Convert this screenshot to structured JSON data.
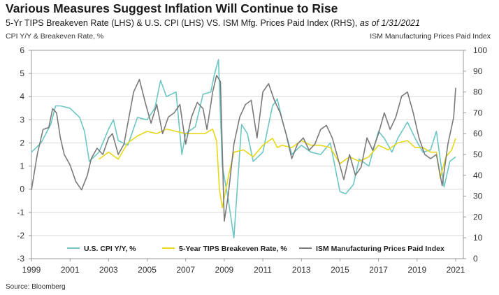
{
  "header": {
    "title": "Various Measures Suggest Inflation Will Continue to Rise",
    "subtitle_main": "5-Yr TIPS Breakeven Rate (LHS) & U.S. CPI (LHS) VS. ISM Mfg. Prices Paid Index (RHS),",
    "subtitle_asof": "as of 1/31/2021",
    "left_axis_label": "CPI Y/Y & Breakeven Rate, %",
    "right_axis_label": "ISM Manufacturing Prices Paid Index"
  },
  "footer": {
    "source": "Source: Bloomberg"
  },
  "chart_data": {
    "type": "line",
    "title": "Various Measures Suggest Inflation Will Continue to Rise",
    "x_tick_labels": [
      "1999",
      "2001",
      "2003",
      "2005",
      "2007",
      "2009",
      "2011",
      "2013",
      "2015",
      "2017",
      "2019",
      "2021"
    ],
    "x_range": [
      1999.0,
      2021.4
    ],
    "left_axis": {
      "ylim": [
        -3,
        6
      ],
      "ticks": [
        "-3",
        "-2",
        "-1",
        "0",
        "1",
        "2",
        "3",
        "4",
        "5",
        "6"
      ]
    },
    "right_axis": {
      "ylim": [
        0,
        100
      ],
      "ticks": [
        "0",
        "10",
        "20",
        "30",
        "40",
        "50",
        "60",
        "70",
        "80",
        "90",
        "100"
      ]
    },
    "grid": "horizontal",
    "legend_position": "bottom",
    "colors": {
      "cpi": "#6cc6c4",
      "tips": "#e8d81a",
      "ism": "#7a7a7a",
      "grid": "#d9d9d9"
    },
    "series": [
      {
        "name": "U.S. CPI Y/Y, %",
        "axis": "left",
        "x": [
          1999.0,
          1999.5,
          2000.0,
          2000.25,
          2000.5,
          2001.0,
          2001.5,
          2001.75,
          2002.0,
          2002.5,
          2003.0,
          2003.25,
          2003.5,
          2004.0,
          2004.5,
          2005.0,
          2005.4,
          2005.7,
          2006.0,
          2006.5,
          2006.8,
          2007.0,
          2007.5,
          2007.9,
          2008.3,
          2008.5,
          2008.7,
          2008.9,
          2009.2,
          2009.5,
          2009.9,
          2010.2,
          2010.5,
          2011.0,
          2011.5,
          2011.75,
          2012.0,
          2012.5,
          2013.0,
          2013.5,
          2014.0,
          2014.5,
          2015.0,
          2015.3,
          2015.7,
          2016.0,
          2016.5,
          2017.0,
          2017.3,
          2017.7,
          2018.0,
          2018.5,
          2018.9,
          2019.3,
          2019.7,
          2020.0,
          2020.4,
          2020.7,
          2021.0
        ],
        "y": [
          1.6,
          2.0,
          2.8,
          3.6,
          3.6,
          3.5,
          3.1,
          2.5,
          1.2,
          1.6,
          2.6,
          3.0,
          2.1,
          1.9,
          3.1,
          3.0,
          3.5,
          4.7,
          4.0,
          4.2,
          1.5,
          2.4,
          2.7,
          4.1,
          4.2,
          5.0,
          5.6,
          1.0,
          -0.4,
          -2.1,
          2.8,
          2.4,
          1.2,
          1.6,
          3.6,
          3.9,
          3.0,
          1.5,
          1.9,
          1.6,
          1.5,
          2.0,
          -0.1,
          -0.2,
          0.2,
          1.3,
          1.0,
          2.5,
          2.2,
          1.6,
          2.2,
          2.9,
          2.2,
          1.6,
          1.7,
          2.5,
          0.1,
          1.2,
          1.4
        ]
      },
      {
        "name": "5-Year TIPS Breakeven Rate, %",
        "axis": "left",
        "x": [
          2002.5,
          2003.0,
          2003.5,
          2004.0,
          2004.5,
          2005.0,
          2005.5,
          2006.0,
          2006.5,
          2007.0,
          2007.5,
          2008.0,
          2008.4,
          2008.6,
          2008.75,
          2008.9,
          2009.2,
          2009.5,
          2010.0,
          2010.5,
          2011.0,
          2011.5,
          2011.75,
          2012.0,
          2012.5,
          2013.0,
          2013.5,
          2014.0,
          2014.5,
          2015.0,
          2015.5,
          2016.0,
          2016.5,
          2017.0,
          2017.5,
          2018.0,
          2018.5,
          2018.9,
          2019.3,
          2019.7,
          2020.0,
          2020.2,
          2020.5,
          2020.8,
          2021.0
        ],
        "y": [
          1.3,
          1.6,
          1.3,
          2.0,
          2.3,
          2.5,
          2.4,
          2.6,
          2.5,
          2.4,
          2.4,
          2.4,
          2.6,
          2.1,
          0.0,
          -0.8,
          0.5,
          1.6,
          1.7,
          1.4,
          1.9,
          2.2,
          1.8,
          1.9,
          1.8,
          2.1,
          1.9,
          1.9,
          1.8,
          1.1,
          1.4,
          1.2,
          1.4,
          1.9,
          1.7,
          2.0,
          2.1,
          1.8,
          1.8,
          1.6,
          1.6,
          0.5,
          1.4,
          1.7,
          2.2
        ]
      },
      {
        "name": "ISM Manufacturing Prices Paid Index",
        "axis": "right",
        "x": [
          1999.0,
          1999.3,
          1999.6,
          1999.9,
          2000.1,
          2000.3,
          2000.5,
          2000.7,
          2001.0,
          2001.3,
          2001.6,
          2001.9,
          2002.1,
          2002.4,
          2002.7,
          2003.0,
          2003.2,
          2003.5,
          2003.8,
          2004.0,
          2004.3,
          2004.6,
          2004.9,
          2005.2,
          2005.5,
          2005.8,
          2006.1,
          2006.4,
          2006.7,
          2007.0,
          2007.3,
          2007.6,
          2007.9,
          2008.1,
          2008.4,
          2008.6,
          2008.8,
          2009.0,
          2009.2,
          2009.5,
          2009.8,
          2010.1,
          2010.4,
          2010.7,
          2011.0,
          2011.3,
          2011.6,
          2011.9,
          2012.2,
          2012.5,
          2012.8,
          2013.1,
          2013.4,
          2013.7,
          2014.0,
          2014.3,
          2014.6,
          2014.9,
          2015.2,
          2015.5,
          2015.8,
          2016.1,
          2016.4,
          2016.7,
          2017.0,
          2017.3,
          2017.6,
          2017.9,
          2018.2,
          2018.5,
          2018.8,
          2019.1,
          2019.4,
          2019.7,
          2020.0,
          2020.3,
          2020.6,
          2020.9,
          2021.0
        ],
        "y": [
          33,
          50,
          62,
          63,
          72,
          70,
          58,
          50,
          45,
          37,
          33,
          40,
          48,
          53,
          50,
          58,
          60,
          50,
          55,
          65,
          80,
          86,
          75,
          65,
          74,
          60,
          68,
          70,
          74,
          55,
          68,
          75,
          72,
          62,
          80,
          88,
          85,
          18,
          30,
          55,
          68,
          74,
          76,
          58,
          80,
          84,
          76,
          70,
          60,
          48,
          55,
          58,
          52,
          55,
          62,
          64,
          58,
          48,
          38,
          50,
          40,
          44,
          58,
          52,
          60,
          70,
          62,
          68,
          78,
          80,
          70,
          58,
          50,
          48,
          50,
          35,
          55,
          68,
          82
        ]
      }
    ]
  }
}
